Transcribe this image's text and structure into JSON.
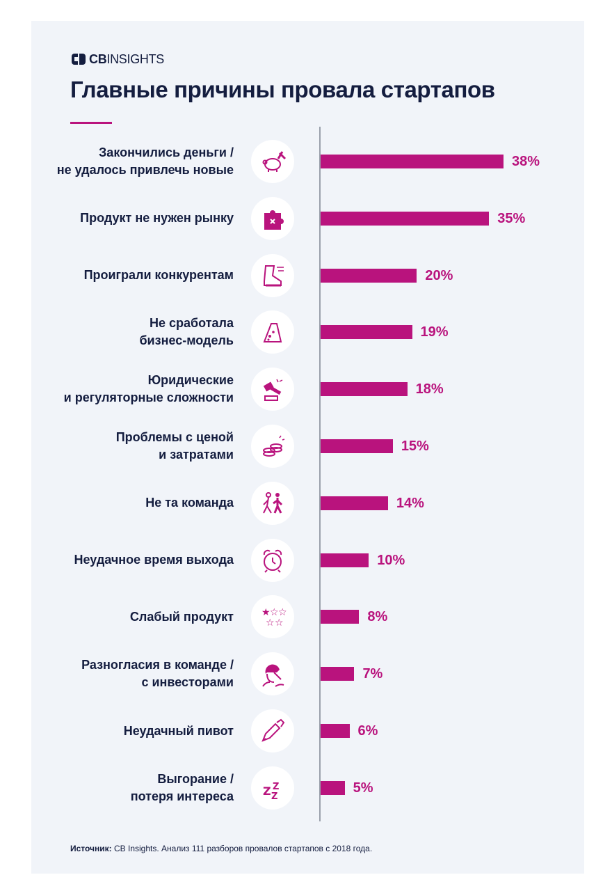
{
  "brand": {
    "logo_bold": "CB",
    "logo_rest": "INSIGHTS",
    "accent_color": "#b9137d",
    "text_color": "#141d3f",
    "background_color": "#f1f4f9"
  },
  "chart_data": {
    "type": "bar",
    "orientation": "horizontal",
    "title": "Главные причины провала стартапов",
    "xlabel": "",
    "ylabel": "",
    "xlim": [
      0,
      38
    ],
    "grid": false,
    "value_suffix": "%",
    "categories": [
      {
        "lines": [
          "Закончились деньги /",
          "не удалось привлечь новые"
        ],
        "icon": "piggy-bank-hammer-icon"
      },
      {
        "lines": [
          "Продукт не нужен рынку"
        ],
        "icon": "puzzle-piece-icon"
      },
      {
        "lines": [
          "Проиграли конкурентам"
        ],
        "icon": "running-shoe-icon"
      },
      {
        "lines": [
          "Не сработала",
          "бизнес-модель"
        ],
        "icon": "cheese-trap-icon"
      },
      {
        "lines": [
          "Юридические",
          "и регуляторные сложности"
        ],
        "icon": "gavel-icon"
      },
      {
        "lines": [
          "Проблемы с ценой",
          "и затратами"
        ],
        "icon": "coins-icon"
      },
      {
        "lines": [
          "Не та команда"
        ],
        "icon": "people-walking-icon"
      },
      {
        "lines": [
          "Неудачное время выхода"
        ],
        "icon": "alarm-clock-icon"
      },
      {
        "lines": [
          "Слабый продукт"
        ],
        "icon": "stars-rating-icon"
      },
      {
        "lines": [
          "Разногласия в команде /",
          "с инвесторами"
        ],
        "icon": "facepalm-icon"
      },
      {
        "lines": [
          "Неудачный пивот"
        ],
        "icon": "broken-pencil-icon"
      },
      {
        "lines": [
          "Выгорание /",
          "потеря интереса"
        ],
        "icon": "sleep-zzz-icon"
      }
    ],
    "values": [
      38,
      35,
      20,
      19,
      18,
      15,
      14,
      10,
      8,
      7,
      6,
      5
    ],
    "value_labels": [
      "38%",
      "35%",
      "20%",
      "19%",
      "18%",
      "15%",
      "14%",
      "10%",
      "8%",
      "7%",
      "6%",
      "5%"
    ]
  },
  "footer": {
    "source_label": "Источник:",
    "source_text": " CB Insights. Анализ 111 разборов провалов стартапов с 2018 года."
  }
}
